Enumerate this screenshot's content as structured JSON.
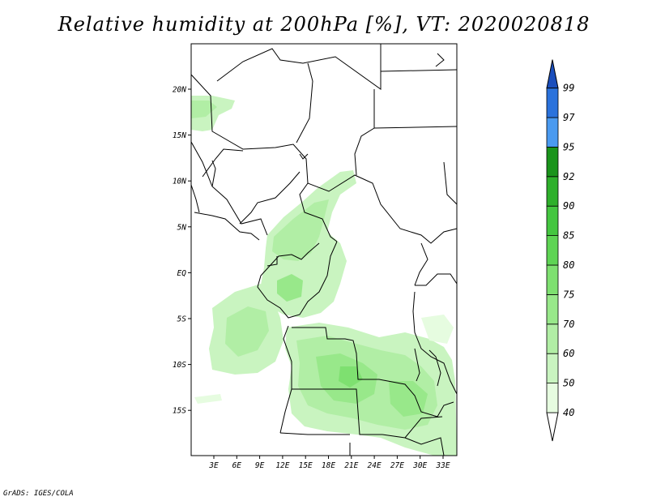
{
  "title": "Relative humidity at 200hPa [%], VT: 2020020818",
  "credit": "GrADS: IGES/COLA",
  "map": {
    "lat_labels": [
      "20N",
      "15N",
      "10N",
      "5N",
      "EQ",
      "5S",
      "10S",
      "15S"
    ],
    "lon_labels": [
      "3E",
      "6E",
      "9E",
      "12E",
      "15E",
      "18E",
      "21E",
      "24E",
      "27E",
      "30E",
      "33E"
    ]
  },
  "colorbar": {
    "levels": [
      "40",
      "50",
      "60",
      "70",
      "75",
      "80",
      "85",
      "90",
      "92",
      "95",
      "97",
      "99"
    ],
    "colors": [
      "#ffffff",
      "#e6fce0",
      "#c9f4c0",
      "#b1eea5",
      "#98e88a",
      "#7ee070",
      "#5ed454",
      "#44c640",
      "#2eb02b",
      "#1a941b",
      "#4a9af0",
      "#2a72dc",
      "#1a4ebc"
    ]
  }
}
